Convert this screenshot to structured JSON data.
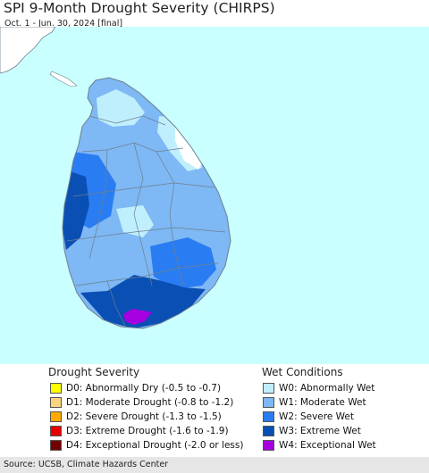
{
  "title": "SPI 9-Month Drought Severity (CHIRPS)",
  "subtitle": "Oct. 1 - Jun. 30, 2024 [final]",
  "colors": {
    "ocean": "#c9ffff",
    "land_outside": "#ffffff",
    "boundary": "#6e7f8e"
  },
  "legend": {
    "drought_title": "Drought Severity",
    "drought": [
      {
        "code": "D0",
        "label": "D0: Abnormally Dry (-0.5 to -0.7)",
        "color": "#ffff00"
      },
      {
        "code": "D1",
        "label": "D1: Moderate Drought (-0.8 to -1.2)",
        "color": "#fcd37f"
      },
      {
        "code": "D2",
        "label": "D2: Severe Drought (-1.3 to -1.5)",
        "color": "#ffaa00"
      },
      {
        "code": "D3",
        "label": "D3: Extreme Drought (-1.6 to -1.9)",
        "color": "#e60000"
      },
      {
        "code": "D4",
        "label": "D4: Exceptional Drought (-2.0 or less)",
        "color": "#730000"
      }
    ],
    "wet_title": "Wet Conditions",
    "wet": [
      {
        "code": "W0",
        "label": "W0: Abnormally Wet",
        "color": "#bfeffd"
      },
      {
        "code": "W1",
        "label": "W1: Moderate Wet",
        "color": "#7eb8f5"
      },
      {
        "code": "W2",
        "label": "W2: Severe Wet",
        "color": "#2a7cf2"
      },
      {
        "code": "W3",
        "label": "W3: Extreme Wet",
        "color": "#0a4fb4"
      },
      {
        "code": "W4",
        "label": "W4: Exceptional Wet",
        "color": "#a500e0"
      }
    ]
  },
  "source": "Source: UCSB, Climate Hazards Center"
}
